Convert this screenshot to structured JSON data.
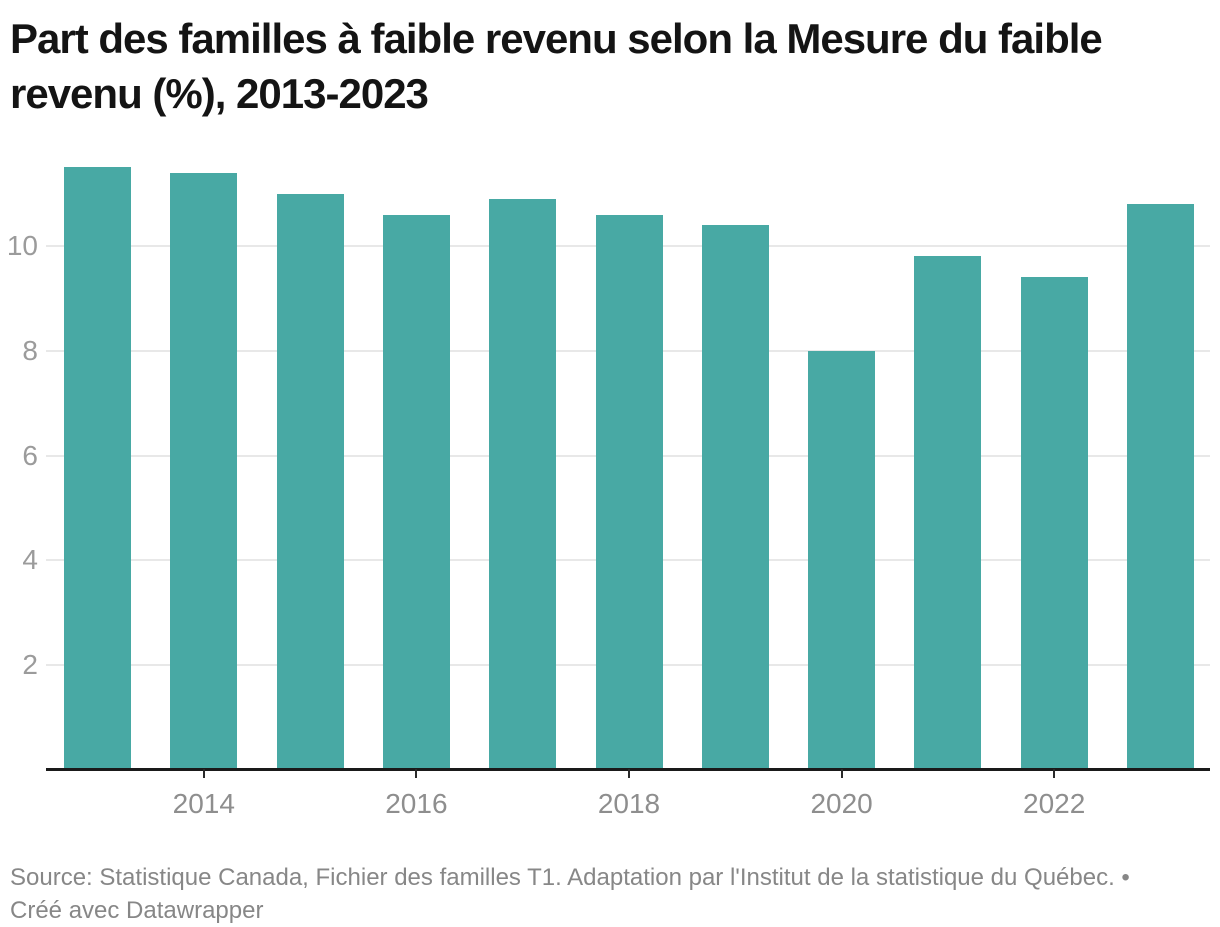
{
  "title": "Part des familles à faible revenu selon la Mesure du faible revenu (%), 2013-2023",
  "footer": {
    "source": "Source: Statistique Canada, Fichier des familles T1. Adaptation par l'Institut de la statistique du Québec.",
    "separator": " • ",
    "credit": "Créé avec Datawrapper"
  },
  "colors": {
    "bar": "#48a9a4",
    "gridline": "#e8e8e8",
    "axis_line": "#1a1a1a",
    "y_tick_label": "#9b9b9b",
    "x_tick_label": "#8e8e8e",
    "title_text": "#141414",
    "footer_text": "#878787"
  },
  "chart_data": {
    "type": "bar",
    "title": "Part des familles à faible revenu selon la Mesure du faible revenu (%), 2013-2023",
    "categories": [
      "2013",
      "2014",
      "2015",
      "2016",
      "2017",
      "2018",
      "2019",
      "2020",
      "2021",
      "2022",
      "2023"
    ],
    "values": [
      11.5,
      11.4,
      11.0,
      10.6,
      10.9,
      10.6,
      10.4,
      8.0,
      9.8,
      9.4,
      10.8
    ],
    "xlabel": "",
    "ylabel": "",
    "ylim": [
      0,
      11.6
    ],
    "yticks": [
      2,
      4,
      6,
      8,
      10
    ],
    "x_labeled_ticks": [
      "2014",
      "2016",
      "2018",
      "2020",
      "2022"
    ],
    "grid": true,
    "legend": "none",
    "bar_color": "#48a9a4"
  }
}
